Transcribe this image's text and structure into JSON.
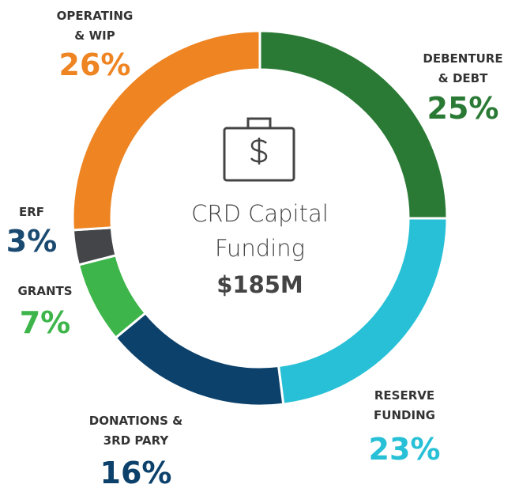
{
  "chart_data": {
    "type": "donut",
    "title": "CRD Capital\nFunding",
    "subtitle": "$185M",
    "categories": [
      "DEBENTURE\n& DEBT",
      "RESERVE\nFUNDING",
      "DONATIONS &\n3RD PARY",
      "GRANTS",
      "ERF",
      "OPERATING\n& WIP"
    ],
    "values": [
      25,
      23,
      16,
      7,
      3,
      26
    ],
    "value_labels": [
      "25%",
      "23%",
      "16%",
      "7%",
      "3%",
      "26%"
    ],
    "colors": [
      "#2a7a35",
      "#27c0d6",
      "#0c416b",
      "#3db54a",
      "#434548",
      "#ee8422"
    ],
    "value_label_colors": [
      "#2a7a35",
      "#27c0d6",
      "#0c416b",
      "#3db54a",
      "#1b4a70",
      "#ee8422"
    ]
  }
}
